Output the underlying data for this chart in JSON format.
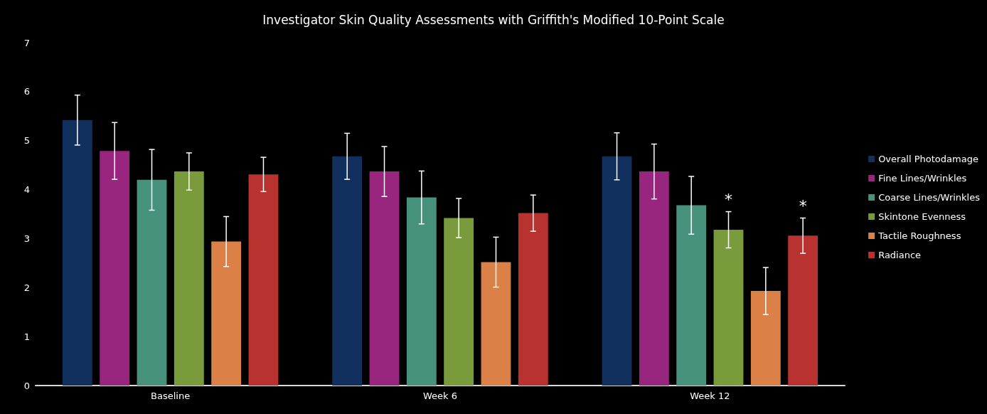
{
  "chart_data": {
    "type": "bar",
    "title": "Investigator Skin Quality Assessments with Griffith's Modified 10-Point Scale",
    "categories": [
      "Baseline",
      "Week 6",
      "Week 12"
    ],
    "series": [
      {
        "name": "Overall Photodamage",
        "color": "#12305e",
        "values": [
          5.42,
          4.68,
          4.68
        ],
        "errors": [
          0.51,
          0.47,
          0.48
        ]
      },
      {
        "name": "Fine Lines/Wrinkles",
        "color": "#98267f",
        "values": [
          4.79,
          4.37,
          4.37
        ],
        "errors": [
          0.58,
          0.51,
          0.56
        ]
      },
      {
        "name": "Coarse Lines/Wrinkles",
        "color": "#46927d",
        "values": [
          4.2,
          3.84,
          3.68
        ],
        "errors": [
          0.62,
          0.54,
          0.59
        ]
      },
      {
        "name": "Skintone Evenness",
        "color": "#7a9b3b",
        "values": [
          4.37,
          3.42,
          3.18
        ],
        "errors": [
          0.38,
          0.4,
          0.37
        ],
        "value_labels": [
          null,
          null,
          "*"
        ]
      },
      {
        "name": "Tactile Roughness",
        "color": "#db8147",
        "values": [
          2.94,
          2.52,
          1.93
        ],
        "errors": [
          0.51,
          0.51,
          0.48
        ]
      },
      {
        "name": "Radiance",
        "color": "#b8332f",
        "values": [
          4.31,
          3.52,
          3.06
        ],
        "errors": [
          0.35,
          0.37,
          0.36
        ],
        "value_labels": [
          null,
          null,
          "*"
        ]
      }
    ],
    "ylim": [
      0,
      7
    ],
    "yticks": [
      0,
      1,
      2,
      3,
      4,
      5,
      6,
      7
    ],
    "grid": false,
    "legend": "right"
  }
}
